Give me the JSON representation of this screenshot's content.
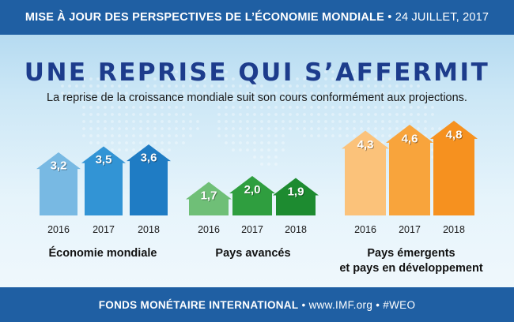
{
  "header": {
    "title": "MISE À JOUR DES PERSPECTIVES DE L’ÉCONOMIE MONDIALE",
    "separator": "•",
    "date": "24 JUILLET, 2017"
  },
  "headline": "UNE REPRISE QUI S’AFFERMIT",
  "subheadline": "La reprise de la croissance mondiale suit son cours conformément aux projections.",
  "chart_data": [
    {
      "type": "bar",
      "title": "Économie mondiale",
      "categories": [
        "2016",
        "2017",
        "2018"
      ],
      "values": [
        3.2,
        3.5,
        3.6
      ],
      "value_labels": [
        "3,2",
        "3,5",
        "3,6"
      ],
      "colors": [
        "#78b9e3",
        "#3294d5",
        "#1f7cc4"
      ],
      "grid": false
    },
    {
      "type": "bar",
      "title": "Pays avancés",
      "categories": [
        "2016",
        "2017",
        "2018"
      ],
      "values": [
        1.7,
        2.0,
        1.9
      ],
      "value_labels": [
        "1,7",
        "2,0",
        "1,9"
      ],
      "colors": [
        "#6fbf77",
        "#2f9e3f",
        "#1d8b30"
      ],
      "grid": false
    },
    {
      "type": "bar",
      "title": "Pays émergents et pays en développement",
      "title_lines": [
        "Pays émergents",
        "et pays en développement"
      ],
      "categories": [
        "2016",
        "2017",
        "2018"
      ],
      "values": [
        4.3,
        4.6,
        4.8
      ],
      "value_labels": [
        "4,3",
        "4,6",
        "4,8"
      ],
      "colors": [
        "#fbc27a",
        "#f8a43c",
        "#f6911f"
      ],
      "grid": false
    }
  ],
  "footer": {
    "org": "FONDS MONÉTAIRE INTERNATIONAL",
    "separator": "•",
    "website": "www.IMF.org",
    "hashtag": "#WEO"
  },
  "colors": {
    "banner": "#1f5fa3",
    "title": "#1d3c8c"
  }
}
